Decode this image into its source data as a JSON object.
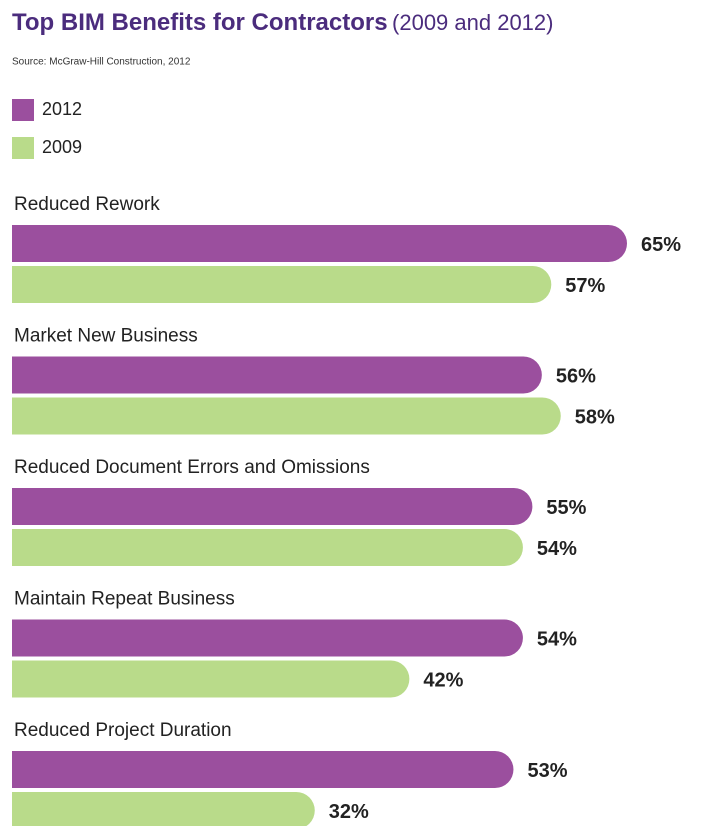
{
  "chart_data": {
    "type": "bar",
    "orientation": "horizontal",
    "title": "Top BIM Benefits for Contractors",
    "title_note": "(2009 and 2012)",
    "source": "Source: McGraw-Hill Construction, 2012",
    "categories": [
      "Reduced Rework",
      "Market New Business",
      "Reduced Document Errors and Omissions",
      "Maintain Repeat Business",
      "Reduced Project Duration"
    ],
    "series": [
      {
        "name": "2012",
        "color": "#9b4f9e",
        "values": [
          65,
          56,
          55,
          54,
          53
        ],
        "value_labels": [
          "65%",
          "56%",
          "55%",
          "54%",
          "53%"
        ]
      },
      {
        "name": "2009",
        "color": "#b9db8a",
        "values": [
          57,
          58,
          54,
          42,
          32
        ],
        "value_labels": [
          "57%",
          "58%",
          "54%",
          "42%",
          "32%"
        ]
      }
    ]
  }
}
